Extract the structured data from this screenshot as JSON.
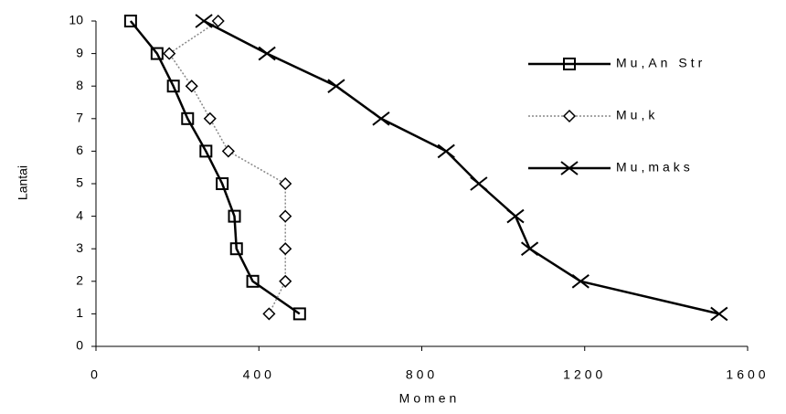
{
  "chart_data": {
    "type": "line",
    "xlabel": "Momen",
    "ylabel": "Lantai",
    "y": [
      1,
      2,
      3,
      4,
      5,
      6,
      7,
      8,
      9,
      10
    ],
    "series": [
      {
        "name": "Mu,An Str",
        "color": "#000000",
        "marker": "square",
        "dash": "solid",
        "x": [
          500,
          385,
          345,
          340,
          310,
          270,
          225,
          190,
          150,
          85
        ]
      },
      {
        "name": "Mu,k",
        "color": "#888888",
        "marker": "diamond",
        "dash": "dotted",
        "x": [
          425,
          465,
          465,
          465,
          465,
          325,
          280,
          235,
          180,
          300
        ]
      },
      {
        "name": "Mu,maks",
        "color": "#000000",
        "marker": "x",
        "dash": "solid",
        "x": [
          1530,
          1190,
          1065,
          1030,
          940,
          860,
          700,
          590,
          420,
          265
        ]
      }
    ],
    "xlim": [
      0,
      1600
    ],
    "xticks": [
      0,
      400,
      800,
      1200,
      1600
    ],
    "ylim": [
      0,
      10
    ],
    "yticks": [
      0,
      1,
      2,
      3,
      4,
      5,
      6,
      7,
      8,
      9,
      10
    ],
    "legend": "right"
  }
}
